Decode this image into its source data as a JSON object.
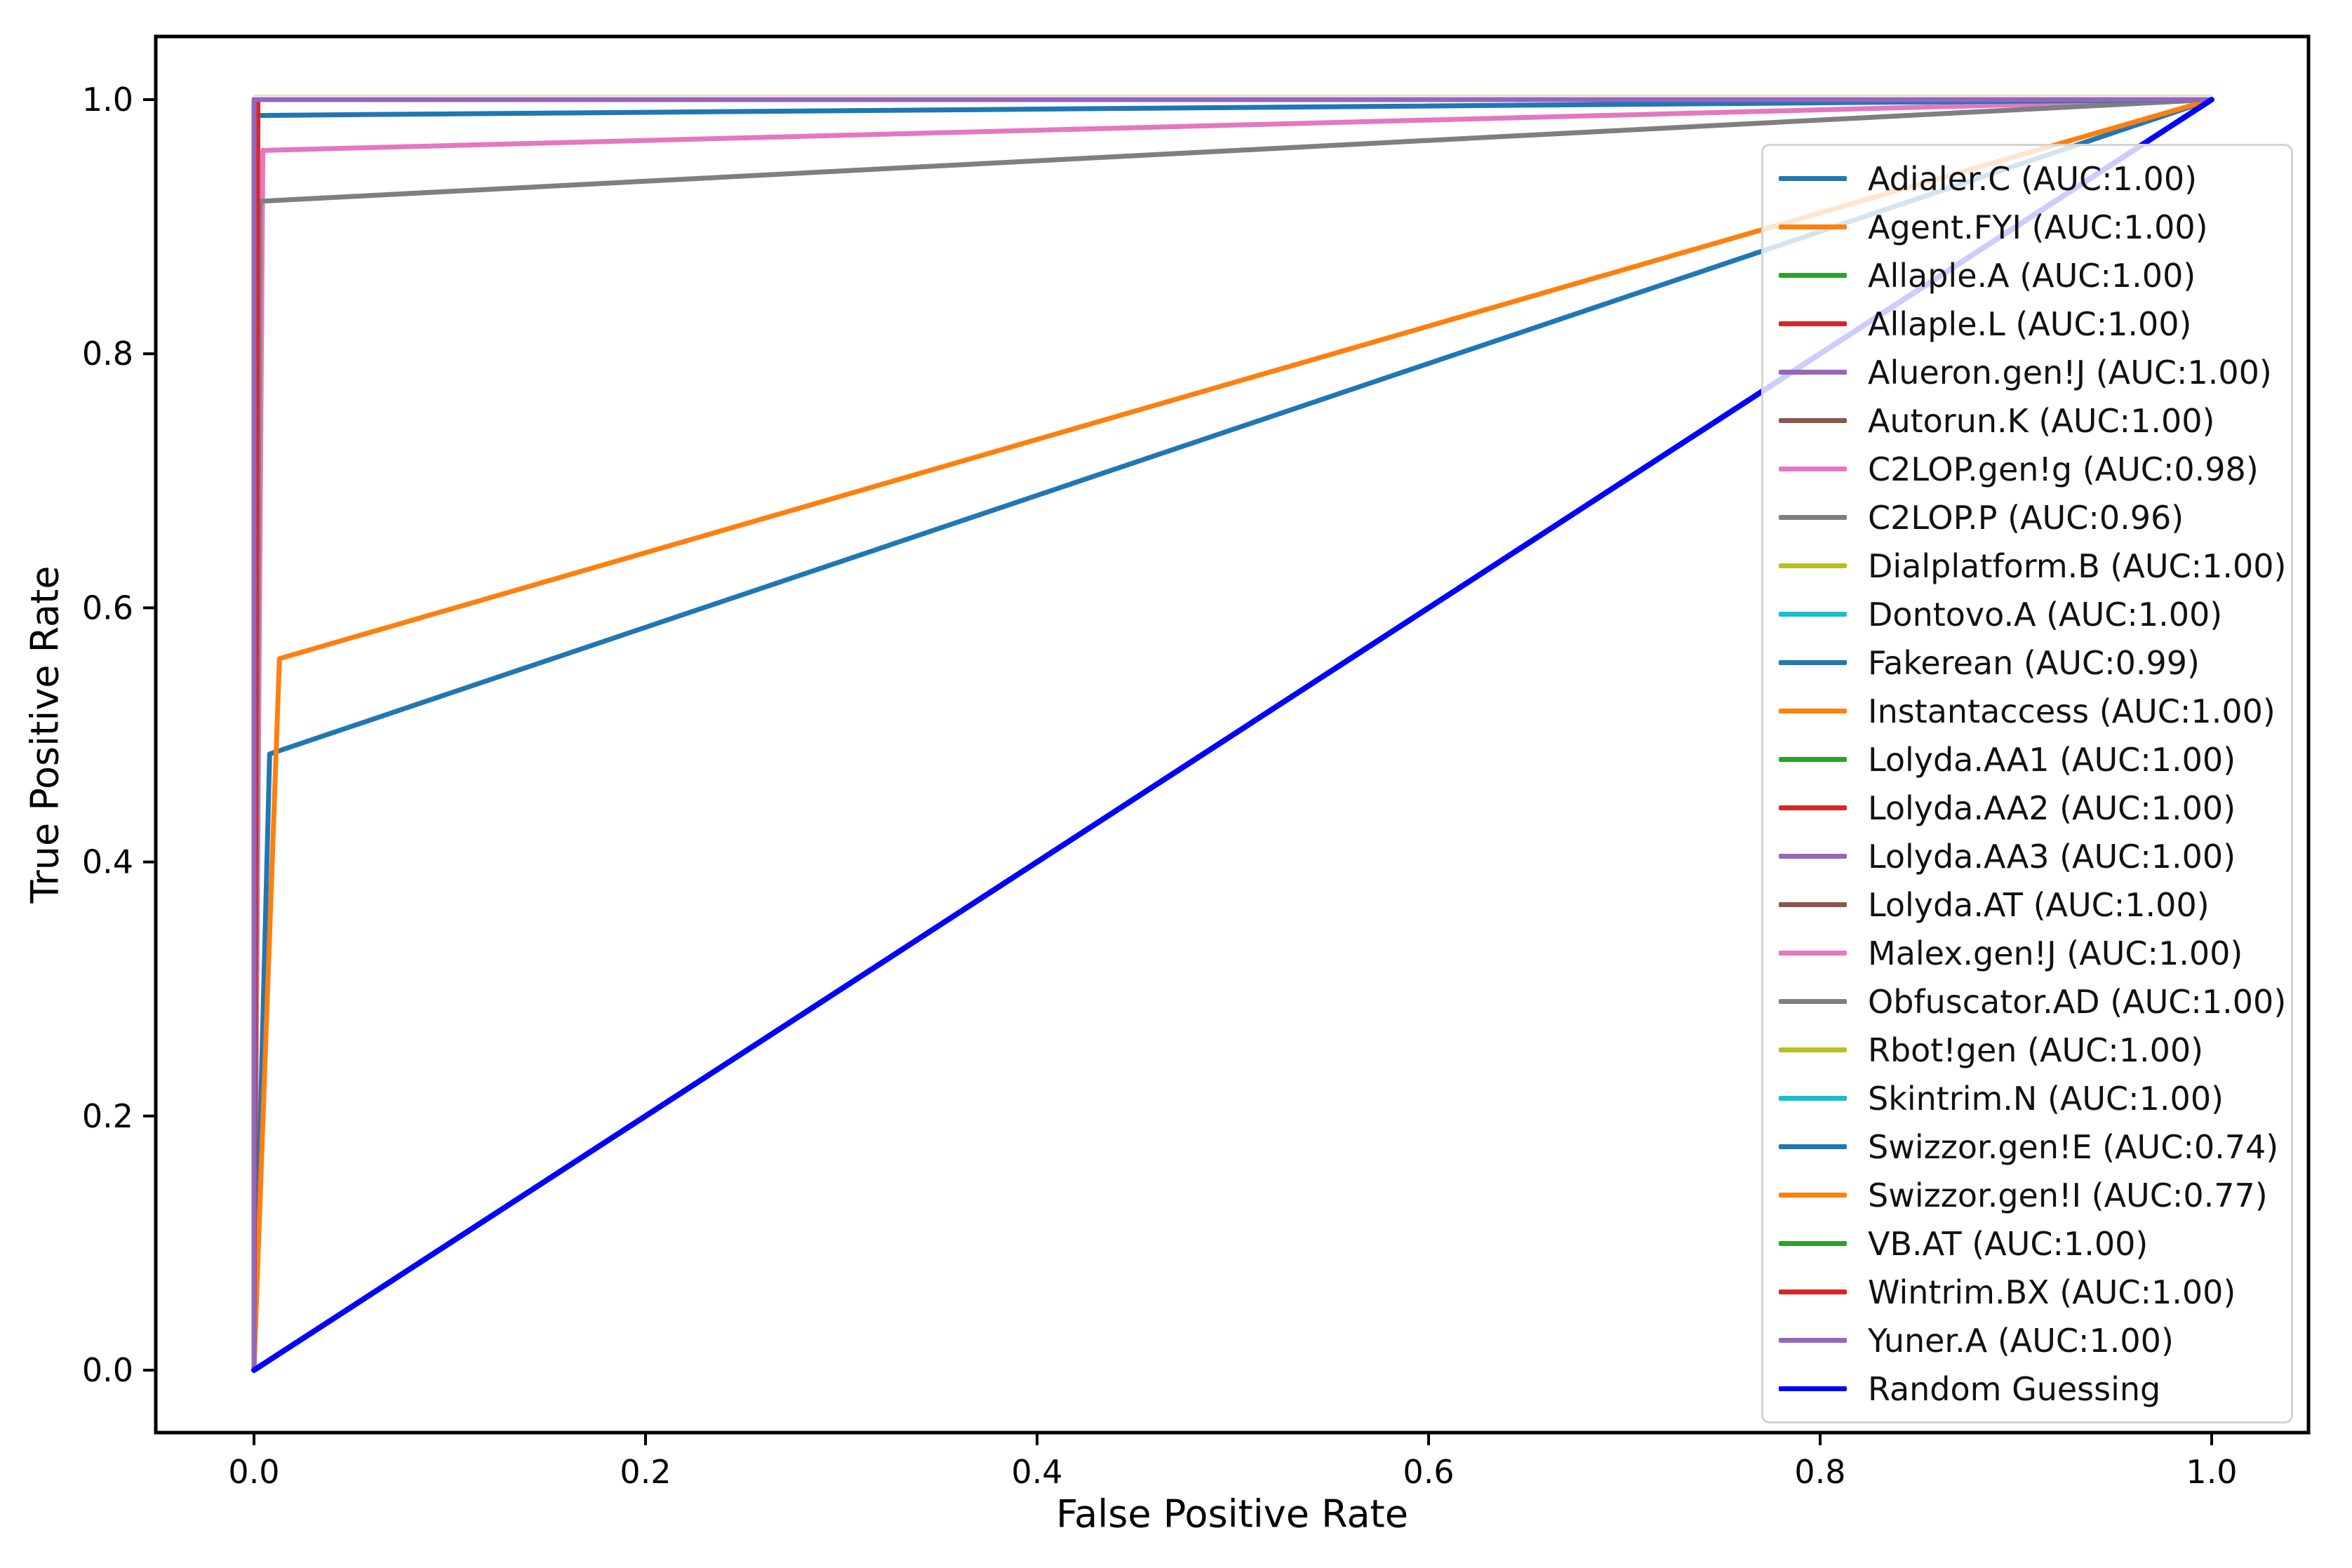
{
  "chart_data": {
    "type": "line",
    "title": "",
    "xlabel": "False Positive Rate",
    "ylabel": "True Positive Rate",
    "xlim": [
      -0.05,
      1.05
    ],
    "ylim": [
      -0.05,
      1.05
    ],
    "grid": false,
    "legend_position": "right-inside",
    "x_ticks": [
      {
        "value": 0.0,
        "label": "0.0"
      },
      {
        "value": 0.2,
        "label": "0.2"
      },
      {
        "value": 0.4,
        "label": "0.4"
      },
      {
        "value": 0.6,
        "label": "0.6"
      },
      {
        "value": 0.8,
        "label": "0.8"
      },
      {
        "value": 1.0,
        "label": "1.0"
      }
    ],
    "y_ticks": [
      {
        "value": 0.0,
        "label": "0.0"
      },
      {
        "value": 0.2,
        "label": "0.2"
      },
      {
        "value": 0.4,
        "label": "0.4"
      },
      {
        "value": 0.6,
        "label": "0.6"
      },
      {
        "value": 0.8,
        "label": "0.8"
      },
      {
        "value": 1.0,
        "label": "1.0"
      }
    ],
    "series": [
      {
        "name": "Adialer.C",
        "auc": "1.00",
        "label": "Adialer.C (AUC:1.00)",
        "color": "#1f77b4",
        "points": [
          [
            0,
            0
          ],
          [
            0,
            1
          ],
          [
            1,
            1
          ]
        ]
      },
      {
        "name": "Agent.FYI",
        "auc": "1.00",
        "label": "Agent.FYI (AUC:1.00)",
        "color": "#ff7f0e",
        "points": [
          [
            0,
            0
          ],
          [
            0,
            1
          ],
          [
            1,
            1
          ]
        ]
      },
      {
        "name": "Allaple.A",
        "auc": "1.00",
        "label": "Allaple.A (AUC:1.00)",
        "color": "#2ca02c",
        "points": [
          [
            0,
            0
          ],
          [
            0,
            1
          ],
          [
            1,
            1
          ]
        ]
      },
      {
        "name": "Allaple.L",
        "auc": "1.00",
        "label": "Allaple.L (AUC:1.00)",
        "color": "#d62728",
        "points": [
          [
            0,
            0
          ],
          [
            0,
            1
          ],
          [
            1,
            1
          ]
        ]
      },
      {
        "name": "Alueron.gen!J",
        "auc": "1.00",
        "label": "Alueron.gen!J (AUC:1.00)",
        "color": "#9467bd",
        "points": [
          [
            0,
            0
          ],
          [
            0,
            1
          ],
          [
            1,
            1
          ]
        ]
      },
      {
        "name": "Autorun.K",
        "auc": "1.00",
        "label": "Autorun.K (AUC:1.00)",
        "color": "#8c564b",
        "points": [
          [
            0,
            0
          ],
          [
            0,
            1
          ],
          [
            1,
            1
          ]
        ]
      },
      {
        "name": "C2LOP.gen!g",
        "auc": "0.98",
        "label": "C2LOP.gen!g (AUC:0.98)",
        "color": "#e377c2",
        "points": [
          [
            0,
            0
          ],
          [
            0.0045,
            0.96
          ],
          [
            1,
            1
          ]
        ]
      },
      {
        "name": "C2LOP.P",
        "auc": "0.96",
        "label": "C2LOP.P (AUC:0.96)",
        "color": "#7f7f7f",
        "points": [
          [
            0,
            0
          ],
          [
            0.003,
            0.92
          ],
          [
            1,
            1
          ]
        ]
      },
      {
        "name": "Dialplatform.B",
        "auc": "1.00",
        "label": "Dialplatform.B (AUC:1.00)",
        "color": "#bcbd22",
        "points": [
          [
            0,
            0
          ],
          [
            0,
            1
          ],
          [
            1,
            1
          ]
        ]
      },
      {
        "name": "Dontovo.A",
        "auc": "1.00",
        "label": "Dontovo.A (AUC:1.00)",
        "color": "#17becf",
        "points": [
          [
            0,
            0
          ],
          [
            0,
            1
          ],
          [
            1,
            1
          ]
        ]
      },
      {
        "name": "Fakerean",
        "auc": "0.99",
        "label": "Fakerean (AUC:0.99)",
        "color": "#1f77b4",
        "points": [
          [
            0,
            0
          ],
          [
            0,
            0.9875
          ],
          [
            1,
            1
          ]
        ]
      },
      {
        "name": "Instantaccess",
        "auc": "1.00",
        "label": "Instantaccess (AUC:1.00)",
        "color": "#ff7f0e",
        "points": [
          [
            0,
            0
          ],
          [
            0,
            1
          ],
          [
            1,
            1
          ]
        ]
      },
      {
        "name": "Lolyda.AA1",
        "auc": "1.00",
        "label": "Lolyda.AA1 (AUC:1.00)",
        "color": "#2ca02c",
        "points": [
          [
            0,
            0
          ],
          [
            0,
            1
          ],
          [
            1,
            1
          ]
        ]
      },
      {
        "name": "Lolyda.AA2",
        "auc": "1.00",
        "label": "Lolyda.AA2 (AUC:1.00)",
        "color": "#d62728",
        "points": [
          [
            0,
            0
          ],
          [
            0,
            1
          ],
          [
            1,
            1
          ]
        ]
      },
      {
        "name": "Lolyda.AA3",
        "auc": "1.00",
        "label": "Lolyda.AA3 (AUC:1.00)",
        "color": "#9467bd",
        "points": [
          [
            0,
            0
          ],
          [
            0,
            1
          ],
          [
            1,
            1
          ]
        ]
      },
      {
        "name": "Lolyda.AT",
        "auc": "1.00",
        "label": "Lolyda.AT (AUC:1.00)",
        "color": "#8c564b",
        "points": [
          [
            0,
            0
          ],
          [
            0,
            1
          ],
          [
            1,
            1
          ]
        ]
      },
      {
        "name": "Malex.gen!J",
        "auc": "1.00",
        "label": "Malex.gen!J (AUC:1.00)",
        "color": "#e377c2",
        "points": [
          [
            0,
            0
          ],
          [
            0,
            1
          ],
          [
            1,
            1
          ]
        ]
      },
      {
        "name": "Obfuscator.AD",
        "auc": "1.00",
        "label": "Obfuscator.AD (AUC:1.00)",
        "color": "#7f7f7f",
        "points": [
          [
            0,
            0
          ],
          [
            0,
            1
          ],
          [
            1,
            1
          ]
        ]
      },
      {
        "name": "Rbot!gen",
        "auc": "1.00",
        "label": "Rbot!gen (AUC:1.00)",
        "color": "#bcbd22",
        "points": [
          [
            0,
            0
          ],
          [
            0,
            1
          ],
          [
            1,
            1
          ]
        ]
      },
      {
        "name": "Skintrim.N",
        "auc": "1.00",
        "label": "Skintrim.N (AUC:1.00)",
        "color": "#17becf",
        "points": [
          [
            0,
            0
          ],
          [
            0,
            1
          ],
          [
            1,
            1
          ]
        ]
      },
      {
        "name": "Swizzor.gen!E",
        "auc": "0.74",
        "label": "Swizzor.gen!E (AUC:0.74)",
        "color": "#1f77b4",
        "points": [
          [
            0,
            0
          ],
          [
            0.008,
            0.485
          ],
          [
            1,
            1
          ]
        ]
      },
      {
        "name": "Swizzor.gen!I",
        "auc": "0.77",
        "label": "Swizzor.gen!I (AUC:0.77)",
        "color": "#ff7f0e",
        "points": [
          [
            0,
            0
          ],
          [
            0.013,
            0.56
          ],
          [
            1,
            1
          ]
        ]
      },
      {
        "name": "VB.AT",
        "auc": "1.00",
        "label": "VB.AT (AUC:1.00)",
        "color": "#2ca02c",
        "points": [
          [
            0,
            0
          ],
          [
            0,
            1
          ],
          [
            1,
            1
          ]
        ]
      },
      {
        "name": "Wintrim.BX",
        "auc": "1.00",
        "label": "Wintrim.BX (AUC:1.00)",
        "color": "#d62728",
        "points": [
          [
            0,
            0
          ],
          [
            0.002,
            1
          ],
          [
            1,
            1
          ]
        ]
      },
      {
        "name": "Yuner.A",
        "auc": "1.00",
        "label": "Yuner.A (AUC:1.00)",
        "color": "#9467bd",
        "points": [
          [
            0,
            0
          ],
          [
            0,
            1
          ],
          [
            1,
            1
          ]
        ]
      },
      {
        "name": "Random Guessing",
        "auc": null,
        "label": "Random Guessing",
        "color": "#0000ff",
        "points": [
          [
            0,
            0
          ],
          [
            1,
            1
          ]
        ]
      }
    ]
  }
}
